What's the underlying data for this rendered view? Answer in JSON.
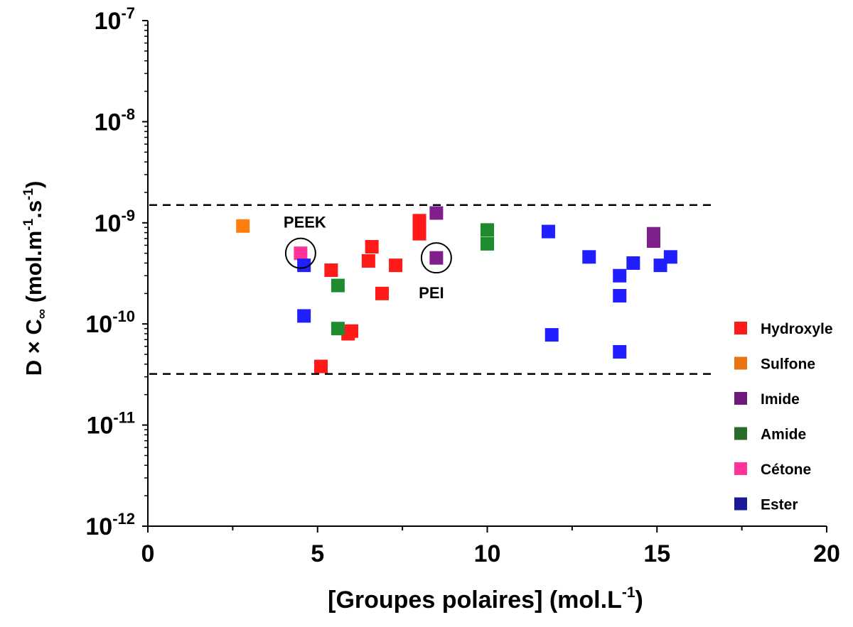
{
  "chart_data": {
    "type": "scatter",
    "title": "",
    "xlabel": "[Groupes polaires] (mol.L",
    "xlabel_sup": "-1",
    "xlabel_tail": ")",
    "ylabel_main": "D × C",
    "ylabel_sub": "∞",
    "ylabel_unit": " (mol.m",
    "ylabel_sup1": "-1",
    "ylabel_mid": ".s",
    "ylabel_sup2": "-1",
    "ylabel_tail": ")",
    "xlim": [
      0,
      20
    ],
    "ylim": [
      1e-12,
      1e-07
    ],
    "yscale": "log",
    "grid": false,
    "legend_position": "right",
    "x_ticks": [
      {
        "value": 0,
        "label": "0"
      },
      {
        "value": 5,
        "label": "5"
      },
      {
        "value": 10,
        "label": "10"
      },
      {
        "value": 15,
        "label": "15"
      },
      {
        "value": 20,
        "label": "20"
      }
    ],
    "y_ticks": [
      {
        "value": 1e-07,
        "base": "10",
        "exp": "-7"
      },
      {
        "value": 1e-08,
        "base": "10",
        "exp": "-8"
      },
      {
        "value": 1e-09,
        "base": "10",
        "exp": "-9"
      },
      {
        "value": 1e-10,
        "base": "10",
        "exp": "-10"
      },
      {
        "value": 1e-11,
        "base": "10",
        "exp": "-11"
      },
      {
        "value": 1e-12,
        "base": "10",
        "exp": "-12"
      }
    ],
    "reference_lines": [
      {
        "y": 1.5e-09,
        "style": "dashed"
      },
      {
        "y": 3.2e-11,
        "style": "dashed"
      }
    ],
    "series": [
      {
        "name": "Hydroxyle",
        "color": "#ff1a1a",
        "legend_color": "#ff1a1a",
        "points": [
          [
            5.1,
            3.8e-11
          ],
          [
            5.4,
            3.4e-10
          ],
          [
            5.9,
            8e-11
          ],
          [
            6.0,
            8.5e-11
          ],
          [
            6.5,
            4.2e-10
          ],
          [
            6.6,
            5.8e-10
          ],
          [
            6.9,
            2e-10
          ],
          [
            7.3,
            3.8e-10
          ],
          [
            8.0,
            7.8e-10
          ],
          [
            8.0,
            1.05e-09
          ]
        ]
      },
      {
        "name": "Sulfone",
        "color": "#ff7f0e",
        "legend_color": "#e87511",
        "points": [
          [
            2.8,
            9.3e-10
          ]
        ]
      },
      {
        "name": "Imide",
        "color": "#7f1f8c",
        "legend_color": "#6d1a7a",
        "points": [
          [
            8.5,
            1.25e-09
          ],
          [
            8.5,
            4.5e-10
          ],
          [
            14.9,
            6.6e-10
          ],
          [
            14.9,
            7.8e-10
          ]
        ]
      },
      {
        "name": "Amide",
        "color": "#1e8c2e",
        "legend_color": "#2a6a2a",
        "points": [
          [
            5.6,
            2.4e-10
          ],
          [
            5.6,
            9e-11
          ],
          [
            10.0,
            6.2e-10
          ],
          [
            10.0,
            8.5e-10
          ]
        ]
      },
      {
        "name": "Cétone",
        "color": "#ff3399",
        "legend_color": "#ff3399",
        "points": [
          [
            4.5,
            5e-10
          ]
        ]
      },
      {
        "name": "Ester",
        "color": "#1f1fff",
        "legend_color": "#1a1a99",
        "points": [
          [
            4.6,
            3.8e-10
          ],
          [
            4.6,
            1.2e-10
          ],
          [
            11.8,
            8.2e-10
          ],
          [
            11.9,
            7.8e-11
          ],
          [
            13.0,
            4.6e-10
          ],
          [
            13.9,
            3e-10
          ],
          [
            13.9,
            1.9e-10
          ],
          [
            13.9,
            5.3e-11
          ],
          [
            14.3,
            4e-10
          ],
          [
            15.1,
            3.8e-10
          ],
          [
            15.4,
            4.6e-10
          ]
        ]
      }
    ],
    "annotations": [
      {
        "label": "PEEK",
        "x": 4.5,
        "y": 5e-10,
        "circled": true,
        "text_side": "above"
      },
      {
        "label": "PEI",
        "x": 8.5,
        "y": 4.5e-10,
        "circled": true,
        "text_side": "below"
      }
    ]
  }
}
